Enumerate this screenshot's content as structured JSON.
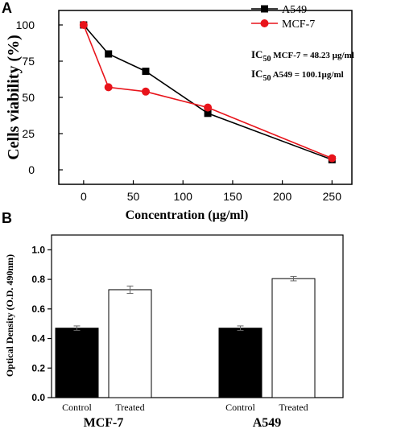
{
  "chart_data": [
    {
      "type": "line",
      "panel_label": "A",
      "xlabel": "Concentration (µg/ml)",
      "ylabel": "Cells viability (%)",
      "xlim": [
        -25,
        270
      ],
      "ylim": [
        -10,
        110
      ],
      "x_ticks": [
        0,
        50,
        100,
        150,
        200,
        250
      ],
      "y_ticks": [
        0,
        25,
        50,
        75,
        100
      ],
      "grid": false,
      "legend_position": "top-right",
      "series": [
        {
          "name": "A549",
          "color": "#000000",
          "marker": "square",
          "x": [
            0,
            25,
            62.5,
            125,
            250
          ],
          "y": [
            100,
            80,
            68,
            39,
            7
          ]
        },
        {
          "name": "MCF-7",
          "color": "#e8141b",
          "marker": "circle",
          "x": [
            0,
            25,
            62.5,
            125,
            250
          ],
          "y": [
            100,
            57,
            54,
            43,
            8
          ]
        }
      ],
      "annotations": [
        {
          "prefix": "IC",
          "subscript": "50",
          "text": " MCF-7 = 48.23 µg/ml"
        },
        {
          "prefix": "IC",
          "subscript": "50",
          "text": " A549 = 100.1µg/ml"
        }
      ]
    },
    {
      "type": "bar",
      "panel_label": "B",
      "ylabel": "Optical Density (O.D. 490nm)",
      "ylim": [
        0,
        1.1
      ],
      "y_ticks": [
        "0.0",
        "0.2",
        "0.4",
        "0.6",
        "0.8",
        "1.0"
      ],
      "grid": false,
      "groups": [
        {
          "name": "MCF-7",
          "categories": [
            "Control",
            "Treated"
          ],
          "values": [
            0.47,
            0.73
          ],
          "errors": [
            0.015,
            0.025
          ]
        },
        {
          "name": "A549",
          "categories": [
            "Control",
            "Treated"
          ],
          "values": [
            0.47,
            0.805
          ],
          "errors": [
            0.015,
            0.015
          ]
        }
      ],
      "bar_colors": {
        "Control": "#000000",
        "Treated": "#ffffff"
      }
    }
  ]
}
